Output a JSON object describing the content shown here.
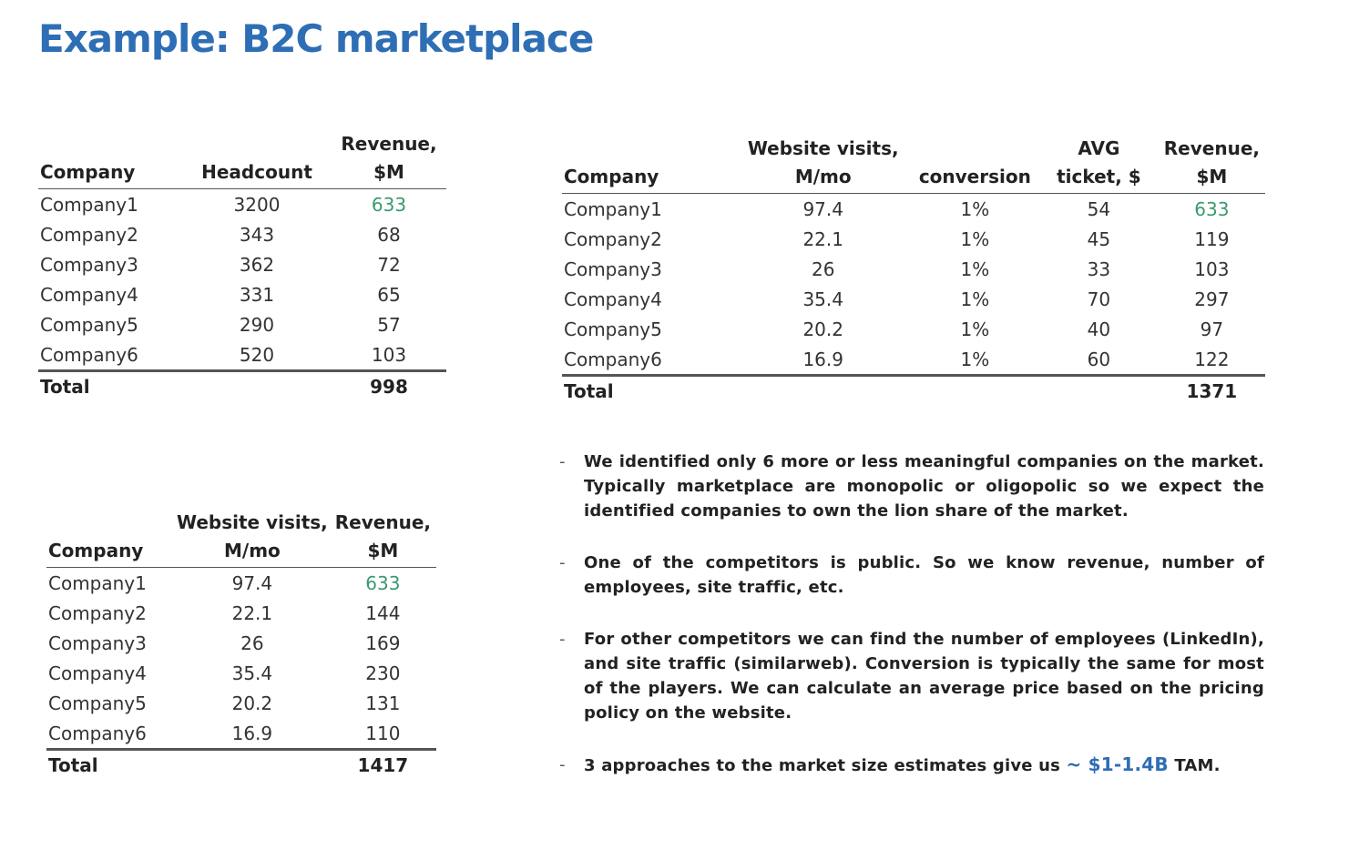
{
  "title": "Example: B2C marketplace",
  "table1": {
    "headers": {
      "company": "Company",
      "headcount": "Headcount",
      "revenue_line1": "Revenue,",
      "revenue_line2": "$M"
    },
    "rows": [
      {
        "company": "Company1",
        "headcount": "3200",
        "revenue": "633"
      },
      {
        "company": "Company2",
        "headcount": "343",
        "revenue": "68"
      },
      {
        "company": "Company3",
        "headcount": "362",
        "revenue": "72"
      },
      {
        "company": "Company4",
        "headcount": "331",
        "revenue": "65"
      },
      {
        "company": "Company5",
        "headcount": "290",
        "revenue": "57"
      },
      {
        "company": "Company6",
        "headcount": "520",
        "revenue": "103"
      }
    ],
    "total_label": "Total",
    "total_value": "998"
  },
  "table2": {
    "headers": {
      "company": "Company",
      "visits_line1": "Website visits,",
      "visits_line2": "M/mo",
      "conversion": "conversion",
      "ticket_line1": "AVG",
      "ticket_line2": "ticket, $",
      "revenue_line1": "Revenue,",
      "revenue_line2": "$M"
    },
    "rows": [
      {
        "company": "Company1",
        "visits": "97.4",
        "conversion": "1%",
        "ticket": "54",
        "revenue": "633"
      },
      {
        "company": "Company2",
        "visits": "22.1",
        "conversion": "1%",
        "ticket": "45",
        "revenue": "119"
      },
      {
        "company": "Company3",
        "visits": "26",
        "conversion": "1%",
        "ticket": "33",
        "revenue": "103"
      },
      {
        "company": "Company4",
        "visits": "35.4",
        "conversion": "1%",
        "ticket": "70",
        "revenue": "297"
      },
      {
        "company": "Company5",
        "visits": "20.2",
        "conversion": "1%",
        "ticket": "40",
        "revenue": "97"
      },
      {
        "company": "Company6",
        "visits": "16.9",
        "conversion": "1%",
        "ticket": "60",
        "revenue": "122"
      }
    ],
    "total_label": "Total",
    "total_value": "1371"
  },
  "table3": {
    "headers": {
      "company": "Company",
      "visits_line1": "Website visits,",
      "visits_line2": "M/mo",
      "revenue_line1": "Revenue,",
      "revenue_line2": "$M"
    },
    "rows": [
      {
        "company": "Company1",
        "visits": "97.4",
        "revenue": "633"
      },
      {
        "company": "Company2",
        "visits": "22.1",
        "revenue": "144"
      },
      {
        "company": "Company3",
        "visits": "26",
        "revenue": "169"
      },
      {
        "company": "Company4",
        "visits": "35.4",
        "revenue": "230"
      },
      {
        "company": "Company5",
        "visits": "20.2",
        "revenue": "131"
      },
      {
        "company": "Company6",
        "visits": "16.9",
        "revenue": "110"
      }
    ],
    "total_label": "Total",
    "total_value": "1417"
  },
  "notes": {
    "bullet": "-",
    "note1": "We identified only 6 more or less meaningful companies on the market. Typically marketplace are monopolic or oligopolic so we expect the identified companies to own the lion share of the market.",
    "note2": "One of the competitors is public. So we know revenue, number of employees, site traffic, etc.",
    "note3": "For other competitors we can find the number of employees (LinkedIn), and site traffic (similarweb). Conversion is typically the same for most of the players. We can calculate an average price based on the pricing policy on the website.",
    "note4_prefix": "3 approaches to the market size estimates give us ",
    "note4_highlight": "~ $1-1.4B",
    "note4_suffix": " TAM."
  },
  "colors": {
    "title_blue": "#2e6eb5",
    "highlight_green": "#3a9a6e",
    "text": "#222222",
    "rule": "#555555"
  }
}
